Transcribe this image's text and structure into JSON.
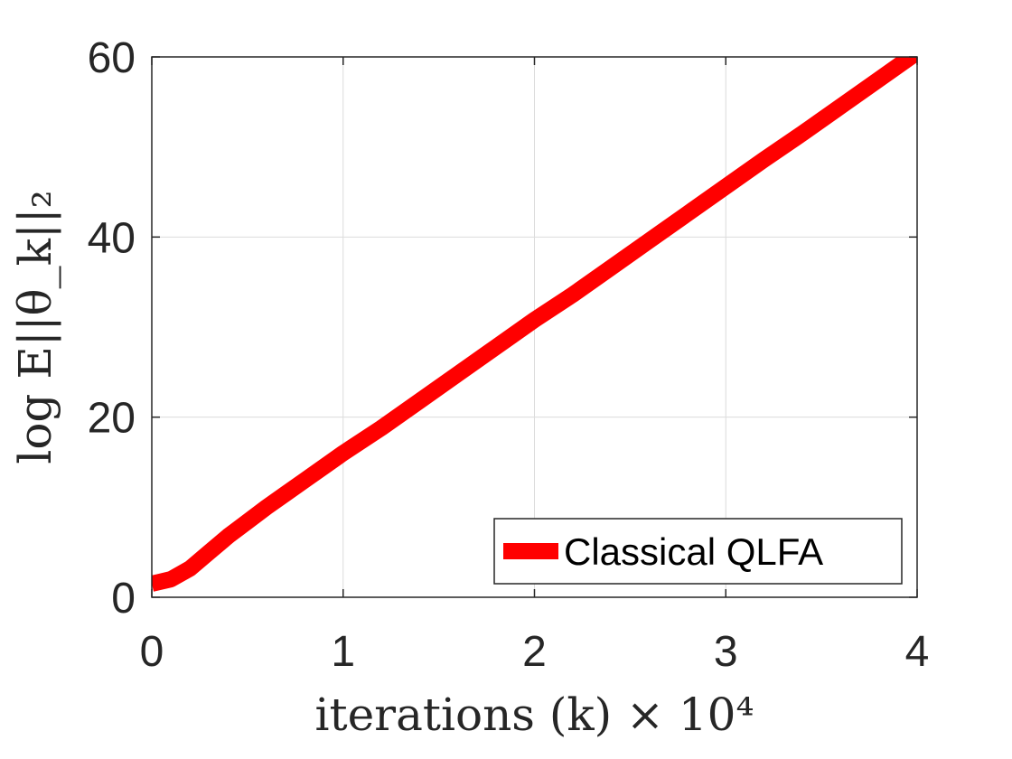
{
  "chart_data": {
    "type": "line",
    "title": "",
    "xlabel": "iterations (k) × 10⁴",
    "ylabel": "log E||θ_k||₂",
    "xlim": [
      0,
      4
    ],
    "ylim": [
      0,
      60
    ],
    "x_ticks": [
      "0",
      "1",
      "2",
      "3",
      "4"
    ],
    "y_ticks": [
      "0",
      "20",
      "40",
      "60"
    ],
    "grid": true,
    "legend_position": "bottom-right",
    "series": [
      {
        "name": "Classical QLFA",
        "color": "#ff0000",
        "x": [
          0,
          0.1,
          0.2,
          0.3,
          0.4,
          0.5,
          0.6,
          0.7,
          0.8,
          0.9,
          1.0,
          1.2,
          1.4,
          1.6,
          1.8,
          2.0,
          2.2,
          2.4,
          2.6,
          2.8,
          3.0,
          3.2,
          3.4,
          3.6,
          3.8,
          4.0
        ],
        "y": [
          1.5,
          2.0,
          3.2,
          5.0,
          6.8,
          8.4,
          10.0,
          11.5,
          13.0,
          14.5,
          16.0,
          18.8,
          21.8,
          24.8,
          27.8,
          30.8,
          33.6,
          36.6,
          39.6,
          42.6,
          45.6,
          48.6,
          51.5,
          54.5,
          57.5,
          60.5
        ]
      }
    ]
  }
}
